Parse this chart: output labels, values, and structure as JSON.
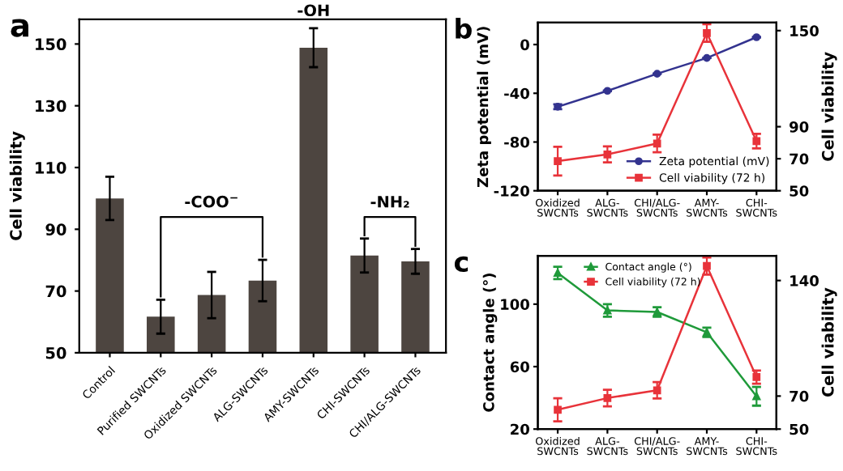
{
  "chart_data": [
    {
      "type": "bar",
      "title": "a",
      "ylabel": "Cell viability",
      "categories": [
        "Control",
        "Purified SWCNTs",
        "Oxidized SWCNTs",
        "ALG-SWCNTs",
        "AMY-SWCNTs",
        "CHI-SWCNTs",
        "CHI/ALG-SWCNTs"
      ],
      "values": [
        100,
        61.7,
        68.7,
        73.4,
        148.8,
        81.5,
        79.6
      ],
      "errors": [
        7,
        5.5,
        7.5,
        6.7,
        6.3,
        5.5,
        4
      ],
      "color": "#4d4540",
      "ylim": [
        50,
        158
      ],
      "yticks": [
        50,
        70,
        90,
        110,
        130,
        150
      ],
      "annotations": [
        "-COO$^{−}$",
        "-OH",
        "-NH₂"
      ]
    },
    {
      "type": "line",
      "title": "b",
      "ylabel": "Zeta potential (mV)",
      "y2label": "Cell viability",
      "categories": [
        "Oxidized\nSWCNTs",
        "ALG-\nSWCNTs",
        "CHI/ALG-\nSWCNTs",
        "AMY-\nSWCNTs",
        "CHI-\nSWCNTs"
      ],
      "series": [
        {
          "name": "Zeta potential (mV)",
          "color": "#33338f",
          "marker": "circle",
          "values": [
            -51,
            -38,
            -24,
            -11,
            6
          ],
          "errors": [
            2,
            null,
            null,
            null,
            null
          ]
        },
        {
          "name": "Cell viability (72 h)",
          "color": "#e8333a",
          "marker": "square",
          "axis": "y2",
          "values": [
            68.5,
            72.7,
            79.5,
            148.5,
            81
          ],
          "errors": [
            9,
            5,
            5.5,
            5.5,
            4.5
          ]
        }
      ],
      "ylim": [
        -120,
        18
      ],
      "yticks": [
        -120,
        -80,
        -40,
        0
      ],
      "y2lim": [
        50,
        155
      ],
      "y2ticks": [
        50,
        70,
        90,
        150
      ],
      "legend": "bottom right"
    },
    {
      "type": "line",
      "title": "c",
      "ylabel": "Contact angle (°)",
      "y2label": "Cell viability",
      "categories": [
        "Oxidized\nSWCNTs",
        "ALG-\nSWCNTs",
        "CHI/ALG-\nSWCNTs",
        "AMY-\nSWCNTs",
        "CHI-\nSWCNTs"
      ],
      "series": [
        {
          "name": "Contact angle (°)",
          "color": "#1f9a3a",
          "marker": "triangle",
          "values": [
            120,
            96,
            95,
            82,
            41
          ],
          "errors": [
            4,
            4,
            3,
            3,
            6
          ]
        },
        {
          "name": "Cell viability (72 h)",
          "color": "#e8333a",
          "marker": "square",
          "axis": "y2",
          "values": [
            61.7,
            68.8,
            73.5,
            148.8,
            81.5
          ],
          "errors": [
            7,
            5,
            5,
            5.2,
            4
          ]
        }
      ],
      "ylim": [
        20,
        131
      ],
      "yticks": [
        20,
        60,
        100
      ],
      "y2lim": [
        50,
        155
      ],
      "y2ticks": [
        50,
        70,
        140
      ],
      "legend": "top"
    }
  ]
}
